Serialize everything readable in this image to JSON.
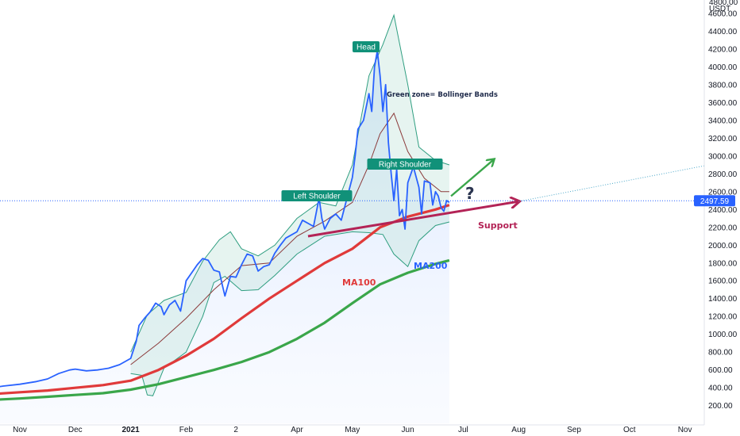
{
  "colors": {
    "background": "#ffffff",
    "price": "#2962ff",
    "ma100": "#e03a3a",
    "ma200": "#3aa64a",
    "bollinger": "#2f9e80",
    "bollinger_fill": "#c8e6dd",
    "bollinger_mid": "#8b3a3a",
    "label_box": "#119179",
    "support": "#b32356",
    "green_arrow": "#3aa64a",
    "last_price": "#2962ff",
    "trendline_ext": "#4aa7c9"
  },
  "chart_data": {
    "type": "line",
    "axis": {
      "currency_lines": [
        "4800.00",
        "USDT"
      ],
      "y_ticks": [
        200,
        400,
        600,
        800,
        1000,
        1200,
        1400,
        1600,
        1800,
        2000,
        2200,
        2400,
        2600,
        2800,
        3000,
        3200,
        3400,
        3600,
        3800,
        4000,
        4200,
        4400,
        4600
      ],
      "ylim": [
        0,
        4850
      ],
      "x_ticks": [
        {
          "label": "Nov",
          "month": 0,
          "bold": false
        },
        {
          "label": "Dec",
          "month": 1,
          "bold": false
        },
        {
          "label": "2021",
          "month": 2,
          "bold": true
        },
        {
          "label": "Feb",
          "month": 3,
          "bold": false
        },
        {
          "label": "2",
          "month": 3.9,
          "bold": false
        },
        {
          "label": "Apr",
          "month": 5,
          "bold": false
        },
        {
          "label": "May",
          "month": 6,
          "bold": false
        },
        {
          "label": "Jun",
          "month": 7,
          "bold": false
        },
        {
          "label": "Jul",
          "month": 8,
          "bold": false
        },
        {
          "label": "Aug",
          "month": 9,
          "bold": false
        },
        {
          "label": "Sep",
          "month": 10,
          "bold": false
        },
        {
          "label": "Oct",
          "month": 11,
          "bold": false
        },
        {
          "label": "Nov",
          "month": 12,
          "bold": false
        }
      ],
      "last_price": 2497.59
    },
    "series": [
      {
        "key": "price",
        "values": [
          [
            -0.5,
            400
          ],
          [
            -0.3,
            420
          ],
          [
            0,
            440
          ],
          [
            0.3,
            470
          ],
          [
            0.5,
            500
          ],
          [
            0.7,
            560
          ],
          [
            0.9,
            600
          ],
          [
            1.0,
            610
          ],
          [
            1.2,
            590
          ],
          [
            1.4,
            600
          ],
          [
            1.6,
            620
          ],
          [
            1.8,
            660
          ],
          [
            2.0,
            730
          ],
          [
            2.1,
            920
          ],
          [
            2.15,
            1100
          ],
          [
            2.25,
            1180
          ],
          [
            2.35,
            1250
          ],
          [
            2.45,
            1350
          ],
          [
            2.55,
            1310
          ],
          [
            2.6,
            1220
          ],
          [
            2.7,
            1330
          ],
          [
            2.8,
            1380
          ],
          [
            2.9,
            1260
          ],
          [
            3.0,
            1600
          ],
          [
            3.1,
            1690
          ],
          [
            3.2,
            1780
          ],
          [
            3.3,
            1850
          ],
          [
            3.4,
            1830
          ],
          [
            3.5,
            1720
          ],
          [
            3.6,
            1700
          ],
          [
            3.65,
            1560
          ],
          [
            3.7,
            1430
          ],
          [
            3.8,
            1650
          ],
          [
            3.9,
            1640
          ],
          [
            4.0,
            1780
          ],
          [
            4.1,
            1900
          ],
          [
            4.2,
            1880
          ],
          [
            4.3,
            1710
          ],
          [
            4.4,
            1760
          ],
          [
            4.5,
            1780
          ],
          [
            4.6,
            1910
          ],
          [
            4.7,
            2000
          ],
          [
            4.8,
            2080
          ],
          [
            5.0,
            2150
          ],
          [
            5.1,
            2280
          ],
          [
            5.3,
            2210
          ],
          [
            5.4,
            2530
          ],
          [
            5.45,
            2300
          ],
          [
            5.5,
            2180
          ],
          [
            5.6,
            2300
          ],
          [
            5.7,
            2350
          ],
          [
            5.8,
            2280
          ],
          [
            6.0,
            2760
          ],
          [
            6.05,
            3000
          ],
          [
            6.1,
            3300
          ],
          [
            6.2,
            3400
          ],
          [
            6.3,
            3700
          ],
          [
            6.35,
            3500
          ],
          [
            6.4,
            4000
          ],
          [
            6.45,
            4180
          ],
          [
            6.5,
            3900
          ],
          [
            6.55,
            3500
          ],
          [
            6.6,
            3800
          ],
          [
            6.65,
            3150
          ],
          [
            6.7,
            2800
          ],
          [
            6.75,
            2500
          ],
          [
            6.8,
            2850
          ],
          [
            6.85,
            2330
          ],
          [
            6.9,
            2400
          ],
          [
            6.95,
            2180
          ],
          [
            7.0,
            2700
          ],
          [
            7.1,
            2880
          ],
          [
            7.2,
            2650
          ],
          [
            7.25,
            2350
          ],
          [
            7.3,
            2720
          ],
          [
            7.4,
            2700
          ],
          [
            7.45,
            2450
          ],
          [
            7.5,
            2600
          ],
          [
            7.55,
            2550
          ],
          [
            7.6,
            2420
          ],
          [
            7.65,
            2380
          ],
          [
            7.7,
            2500
          ],
          [
            7.75,
            2480
          ]
        ]
      },
      {
        "key": "ma100",
        "values": [
          [
            -0.5,
            330
          ],
          [
            0,
            350
          ],
          [
            0.5,
            370
          ],
          [
            1.0,
            400
          ],
          [
            1.5,
            430
          ],
          [
            2.0,
            480
          ],
          [
            2.5,
            600
          ],
          [
            3.0,
            760
          ],
          [
            3.5,
            950
          ],
          [
            4.0,
            1180
          ],
          [
            4.5,
            1400
          ],
          [
            5.0,
            1600
          ],
          [
            5.5,
            1800
          ],
          [
            6.0,
            1960
          ],
          [
            6.5,
            2200
          ],
          [
            7.0,
            2320
          ],
          [
            7.5,
            2400
          ],
          [
            7.75,
            2450
          ]
        ]
      },
      {
        "key": "ma200",
        "values": [
          [
            -0.5,
            265
          ],
          [
            0,
            280
          ],
          [
            0.5,
            300
          ],
          [
            1.0,
            320
          ],
          [
            1.5,
            340
          ],
          [
            2.0,
            380
          ],
          [
            2.5,
            440
          ],
          [
            3.0,
            520
          ],
          [
            3.5,
            600
          ],
          [
            4.0,
            690
          ],
          [
            4.5,
            800
          ],
          [
            5.0,
            950
          ],
          [
            5.5,
            1130
          ],
          [
            6.0,
            1350
          ],
          [
            6.5,
            1560
          ],
          [
            7.0,
            1690
          ],
          [
            7.5,
            1790
          ],
          [
            7.75,
            1830
          ]
        ]
      },
      {
        "key": "bb_upper",
        "values": [
          [
            2.0,
            800
          ],
          [
            2.3,
            1220
          ],
          [
            2.6,
            1380
          ],
          [
            3.0,
            1470
          ],
          [
            3.3,
            1820
          ],
          [
            3.6,
            2060
          ],
          [
            3.8,
            2150
          ],
          [
            4.0,
            1960
          ],
          [
            4.3,
            1880
          ],
          [
            4.6,
            2000
          ],
          [
            5.0,
            2300
          ],
          [
            5.4,
            2480
          ],
          [
            5.7,
            2440
          ],
          [
            6.0,
            2900
          ],
          [
            6.3,
            3900
          ],
          [
            6.55,
            4250
          ],
          [
            6.75,
            4580
          ],
          [
            7.0,
            3800
          ],
          [
            7.2,
            3100
          ],
          [
            7.5,
            2950
          ],
          [
            7.75,
            2900
          ]
        ]
      },
      {
        "key": "bb_lower",
        "values": [
          [
            2.0,
            560
          ],
          [
            2.2,
            540
          ],
          [
            2.3,
            320
          ],
          [
            2.4,
            310
          ],
          [
            2.6,
            620
          ],
          [
            3.0,
            800
          ],
          [
            3.3,
            1200
          ],
          [
            3.5,
            1580
          ],
          [
            3.7,
            1650
          ],
          [
            4.0,
            1490
          ],
          [
            4.3,
            1500
          ],
          [
            4.6,
            1660
          ],
          [
            5.0,
            1900
          ],
          [
            5.5,
            2100
          ],
          [
            6.0,
            2150
          ],
          [
            6.3,
            2140
          ],
          [
            6.55,
            2120
          ],
          [
            6.75,
            1900
          ],
          [
            7.0,
            1760
          ],
          [
            7.2,
            2050
          ],
          [
            7.5,
            2220
          ],
          [
            7.75,
            2260
          ]
        ]
      },
      {
        "key": "bb_mid",
        "values": [
          [
            2.0,
            660
          ],
          [
            2.5,
            900
          ],
          [
            3.0,
            1180
          ],
          [
            3.5,
            1500
          ],
          [
            4.0,
            1770
          ],
          [
            4.5,
            1800
          ],
          [
            5.0,
            2100
          ],
          [
            5.5,
            2270
          ],
          [
            6.0,
            2480
          ],
          [
            6.3,
            2900
          ],
          [
            6.5,
            3250
          ],
          [
            6.75,
            3480
          ],
          [
            7.0,
            3050
          ],
          [
            7.3,
            2750
          ],
          [
            7.6,
            2600
          ],
          [
            7.75,
            2600
          ]
        ]
      }
    ],
    "annotations": {
      "head": "Head",
      "left_shoulder": "Left Shoulder",
      "right_shoulder": "Right Shoulder",
      "bollinger_note": "Green zone= Bollinger Bands",
      "ma100_label": "MA100",
      "ma200_label": "MA200",
      "support_label": "Support",
      "question": "?"
    }
  }
}
